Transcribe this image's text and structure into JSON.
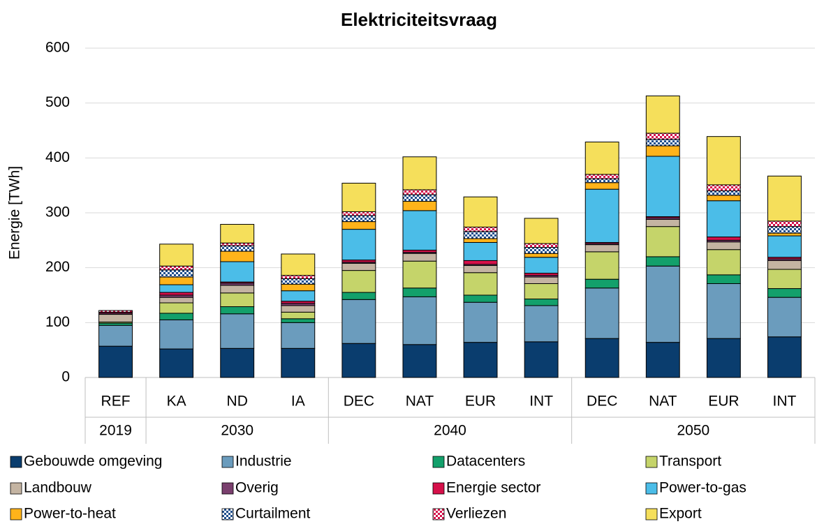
{
  "chart_data": {
    "type": "stacked_bar",
    "title": "Elektriciteitsvraag",
    "y_label": "Energie [TWh]",
    "categories": [
      "REF",
      "KA",
      "ND",
      "IA",
      "DEC",
      "NAT",
      "EUR",
      "INT",
      "DEC",
      "NAT",
      "EUR",
      "INT"
    ],
    "groups": [
      {
        "name": "2019",
        "size": 1
      },
      {
        "name": "2030",
        "size": 3
      },
      {
        "name": "2040",
        "size": 4
      },
      {
        "name": "2050",
        "size": 4
      }
    ],
    "ylim": [
      0,
      600
    ],
    "yticks": [
      0,
      100,
      200,
      300,
      400,
      500,
      600
    ],
    "grid": true,
    "series": [
      {
        "name": "Gebouwde omgeving",
        "color": "#0a3d6e",
        "values": [
          57,
          52,
          53,
          53,
          62,
          60,
          64,
          65,
          71,
          64,
          71,
          74
        ]
      },
      {
        "name": "Industrie",
        "color": "#6b9cbd",
        "values": [
          38,
          53,
          63,
          47,
          80,
          87,
          73,
          66,
          92,
          139,
          100,
          72
        ]
      },
      {
        "name": "Datacenters",
        "color": "#13a06b",
        "values": [
          4,
          12,
          13,
          7,
          13,
          16,
          13,
          12,
          16,
          17,
          16,
          16
        ]
      },
      {
        "name": "Transport",
        "color": "#c5d46a",
        "values": [
          2,
          19,
          25,
          12,
          40,
          49,
          41,
          28,
          50,
          55,
          46,
          35
        ]
      },
      {
        "name": "Landbouw",
        "color": "#c4b4a2",
        "values": [
          14,
          10,
          14,
          12,
          13,
          14,
          13,
          12,
          13,
          13,
          14,
          16
        ]
      },
      {
        "name": "Overig",
        "color": "#7a3f6e",
        "values": [
          2,
          4,
          4,
          4,
          2,
          2,
          2,
          3,
          2,
          3,
          3,
          3
        ]
      },
      {
        "name": "Energie sector",
        "color": "#d6104a",
        "values": [
          2,
          5,
          2,
          4,
          4,
          4,
          7,
          4,
          2,
          2,
          6,
          3
        ]
      },
      {
        "name": "Power-to-gas",
        "color": "#4bbde8",
        "values": [
          0,
          14,
          37,
          19,
          56,
          72,
          33,
          29,
          97,
          110,
          66,
          39
        ]
      },
      {
        "name": "Power-to-heat",
        "color": "#ffb31a",
        "values": [
          0,
          14,
          19,
          12,
          14,
          17,
          7,
          7,
          12,
          19,
          10,
          5
        ]
      },
      {
        "name": "Curtailment",
        "color": "#1f4e8c",
        "pattern": "checker",
        "values": [
          0,
          13,
          10,
          10,
          11,
          12,
          13,
          11,
          7,
          12,
          8,
          12
        ]
      },
      {
        "name": "Verliezen",
        "color": "#d6104a",
        "pattern": "checker",
        "values": [
          3,
          7,
          5,
          6,
          7,
          9,
          8,
          7,
          8,
          11,
          11,
          10
        ]
      },
      {
        "name": "Export",
        "color": "#f5df5b",
        "values": [
          0,
          40,
          34,
          39,
          52,
          60,
          55,
          46,
          59,
          68,
          88,
          82
        ]
      }
    ]
  }
}
